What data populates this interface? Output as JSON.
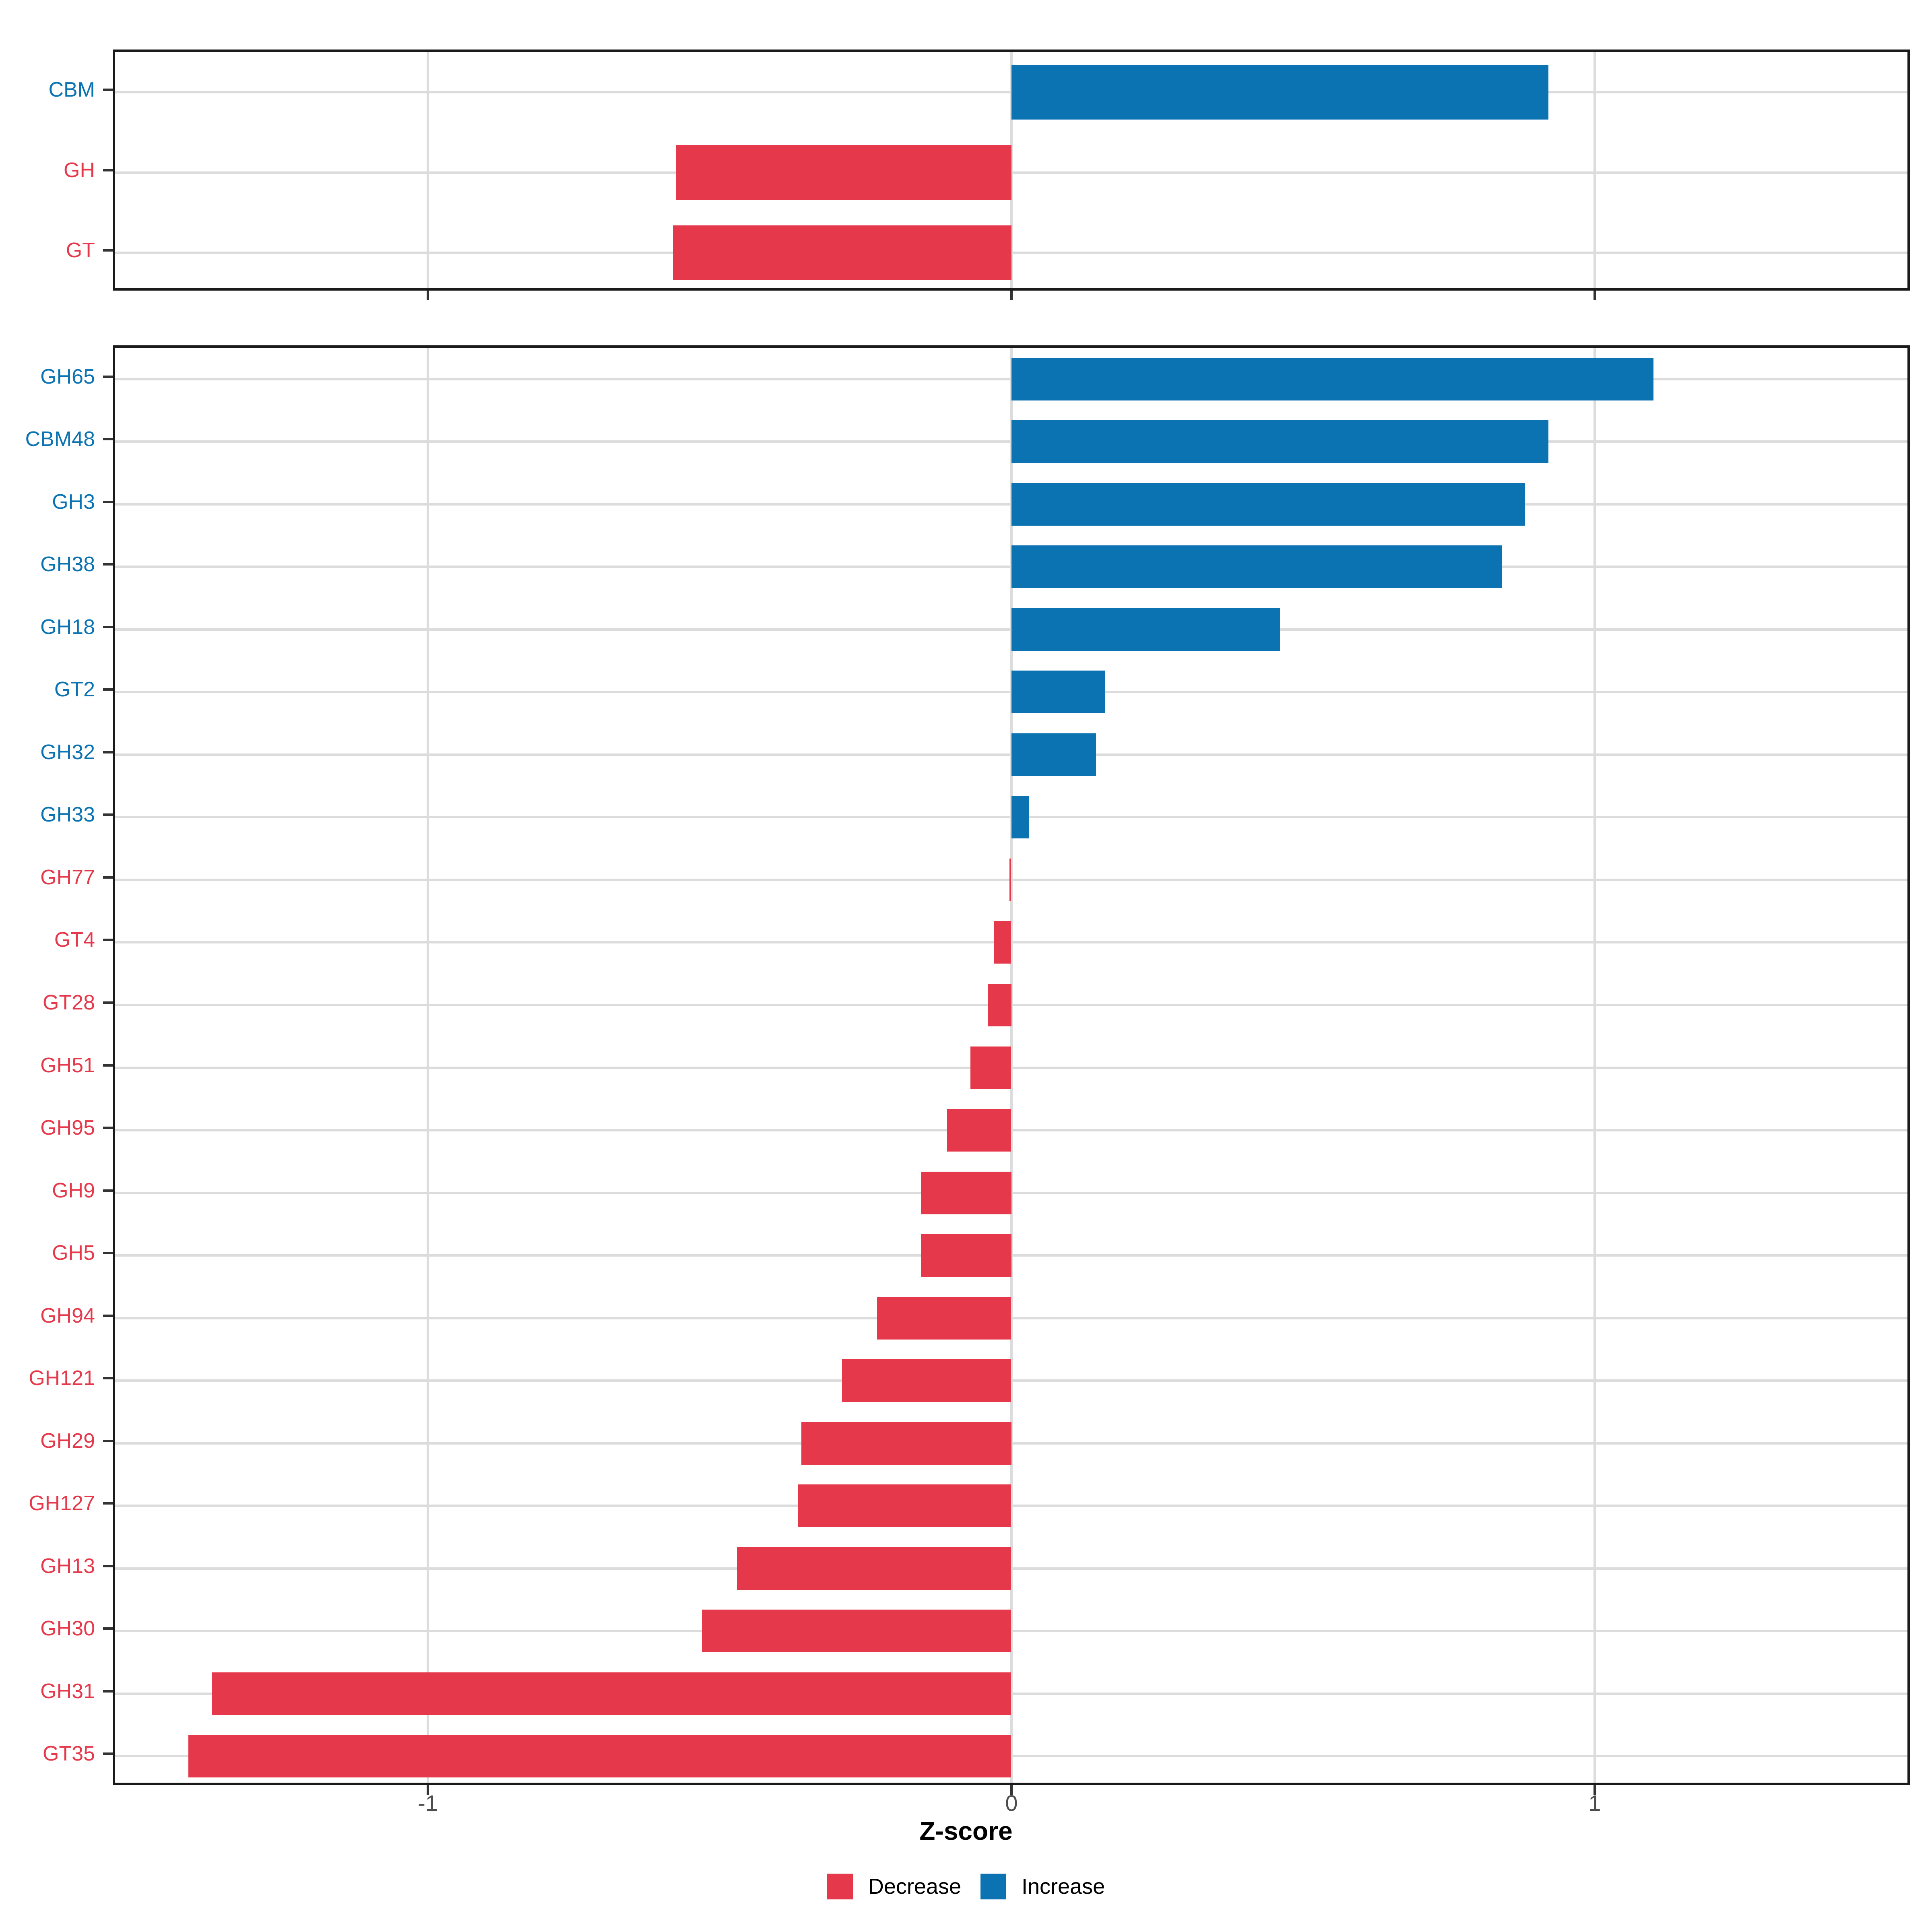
{
  "title": "",
  "colors": {
    "increase": "#0b73b1",
    "decrease": "#e5394b",
    "grid": "#dcdcdc",
    "panel_border": "#1a1a1a",
    "tick_mark": "#333333",
    "axis_text": "#4d4d4d",
    "axis_title": "#000000"
  },
  "axis": {
    "label": "Z-score",
    "ticks": [
      -1,
      0,
      1
    ],
    "tick_labels": [
      "-1",
      "0",
      "1"
    ],
    "xmin": -1.54,
    "xmax": 1.54
  },
  "legend": {
    "position": "bottom",
    "items": [
      {
        "label": "Decrease",
        "color_key": "decrease"
      },
      {
        "label": "Increase",
        "color_key": "increase"
      }
    ]
  },
  "chart_data": [
    {
      "type": "bar",
      "orientation": "horizontal",
      "panel": "top",
      "xlabel": "Z-score",
      "xlim": [
        -1.54,
        1.54
      ],
      "grid": "on",
      "categories": [
        "CBM",
        "GH",
        "GT"
      ],
      "values": [
        0.92,
        -0.575,
        -0.58
      ],
      "directions": [
        "Increase",
        "Decrease",
        "Decrease"
      ]
    },
    {
      "type": "bar",
      "orientation": "horizontal",
      "panel": "bottom",
      "xlabel": "Z-score",
      "xlim": [
        -1.54,
        1.54
      ],
      "grid": "on",
      "categories": [
        "GH65",
        "CBM48",
        "GH3",
        "GH38",
        "GH18",
        "GT2",
        "GH32",
        "GH33",
        "GH77",
        "GT4",
        "GT28",
        "GH51",
        "GH95",
        "GH9",
        "GH5",
        "GH94",
        "GH121",
        "GH29",
        "GH127",
        "GH13",
        "GH30",
        "GH31",
        "GT35"
      ],
      "values": [
        1.1,
        0.92,
        0.88,
        0.84,
        0.46,
        0.16,
        0.145,
        0.03,
        -0.003,
        -0.03,
        -0.04,
        -0.07,
        -0.11,
        -0.155,
        -0.155,
        -0.23,
        -0.29,
        -0.36,
        -0.365,
        -0.47,
        -0.53,
        -1.37,
        -1.41
      ],
      "directions": [
        "Increase",
        "Increase",
        "Increase",
        "Increase",
        "Increase",
        "Increase",
        "Increase",
        "Increase",
        "Decrease",
        "Decrease",
        "Decrease",
        "Decrease",
        "Decrease",
        "Decrease",
        "Decrease",
        "Decrease",
        "Decrease",
        "Decrease",
        "Decrease",
        "Decrease",
        "Decrease",
        "Decrease",
        "Decrease"
      ]
    }
  ]
}
